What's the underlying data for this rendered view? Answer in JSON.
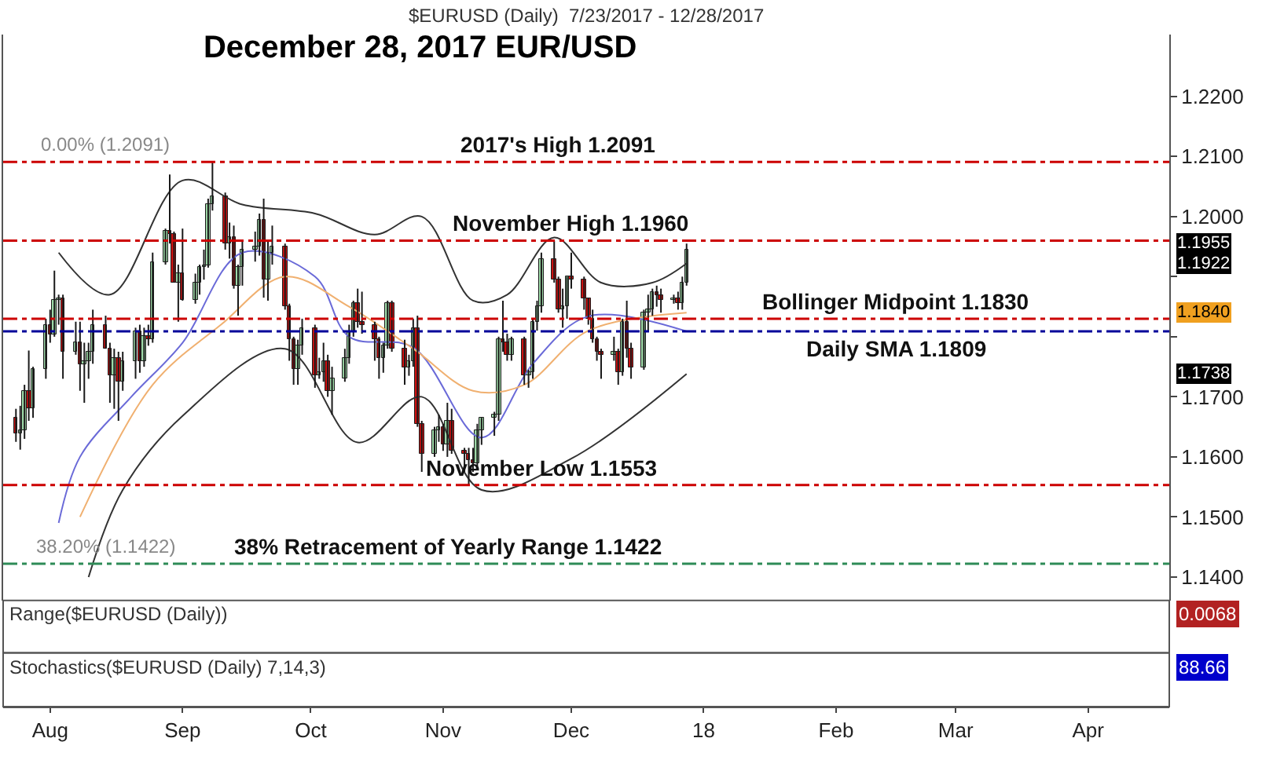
{
  "chart_data": {
    "type": "candlestick",
    "title": "December 28, 2017 EUR/USD",
    "subtitle": "$EURUSD (Daily)  7/23/2017 - 12/28/2017",
    "x": [
      "2017-07-24",
      "2017-07-25",
      "2017-07-26",
      "2017-07-27",
      "2017-07-28",
      "2017-07-31",
      "2017-08-01",
      "2017-08-02",
      "2017-08-03",
      "2017-08-04",
      "2017-08-07",
      "2017-08-08",
      "2017-08-09",
      "2017-08-10",
      "2017-08-11",
      "2017-08-14",
      "2017-08-15",
      "2017-08-16",
      "2017-08-17",
      "2017-08-18",
      "2017-08-21",
      "2017-08-22",
      "2017-08-23",
      "2017-08-24",
      "2017-08-25",
      "2017-08-28",
      "2017-08-29",
      "2017-08-30",
      "2017-08-31",
      "2017-09-01",
      "2017-09-04",
      "2017-09-05",
      "2017-09-06",
      "2017-09-07",
      "2017-09-08",
      "2017-09-11",
      "2017-09-12",
      "2017-09-13",
      "2017-09-14",
      "2017-09-15",
      "2017-09-18",
      "2017-09-19",
      "2017-09-20",
      "2017-09-21",
      "2017-09-22",
      "2017-09-25",
      "2017-09-26",
      "2017-09-27",
      "2017-09-28",
      "2017-09-29",
      "2017-10-02",
      "2017-10-03",
      "2017-10-04",
      "2017-10-05",
      "2017-10-06",
      "2017-10-09",
      "2017-10-10",
      "2017-10-11",
      "2017-10-12",
      "2017-10-13",
      "2017-10-16",
      "2017-10-17",
      "2017-10-18",
      "2017-10-19",
      "2017-10-20",
      "2017-10-23",
      "2017-10-24",
      "2017-10-25",
      "2017-10-26",
      "2017-10-27",
      "2017-10-30",
      "2017-10-31",
      "2017-11-01",
      "2017-11-02",
      "2017-11-03",
      "2017-11-06",
      "2017-11-07",
      "2017-11-08",
      "2017-11-09",
      "2017-11-10",
      "2017-11-13",
      "2017-11-14",
      "2017-11-15",
      "2017-11-16",
      "2017-11-17",
      "2017-11-20",
      "2017-11-21",
      "2017-11-22",
      "2017-11-23",
      "2017-11-24",
      "2017-11-27",
      "2017-11-28",
      "2017-11-29",
      "2017-11-30",
      "2017-12-01",
      "2017-12-04",
      "2017-12-05",
      "2017-12-06",
      "2017-12-07",
      "2017-12-08",
      "2017-12-11",
      "2017-12-12",
      "2017-12-13",
      "2017-12-14",
      "2017-12-15",
      "2017-12-18",
      "2017-12-19",
      "2017-12-20",
      "2017-12-21",
      "2017-12-22",
      "2017-12-25",
      "2017-12-26",
      "2017-12-27",
      "2017-12-28"
    ],
    "ohlc": [
      [
        1.1665,
        1.168,
        1.1625,
        1.164
      ],
      [
        1.164,
        1.1685,
        1.1612,
        1.1645
      ],
      [
        1.1645,
        1.172,
        1.163,
        1.171
      ],
      [
        1.171,
        1.1777,
        1.166,
        1.168
      ],
      [
        1.168,
        1.175,
        1.1665,
        1.1745
      ],
      [
        1.1745,
        1.183,
        1.173,
        1.182
      ],
      [
        1.182,
        1.1845,
        1.179,
        1.1805
      ],
      [
        1.1805,
        1.191,
        1.18,
        1.186
      ],
      [
        1.186,
        1.187,
        1.182,
        1.1865
      ],
      [
        1.1865,
        1.187,
        1.173,
        1.1775
      ],
      [
        1.1775,
        1.1825,
        1.177,
        1.179
      ],
      [
        1.179,
        1.1825,
        1.171,
        1.1755
      ],
      [
        1.1755,
        1.179,
        1.169,
        1.176
      ],
      [
        1.176,
        1.179,
        1.173,
        1.1775
      ],
      [
        1.1775,
        1.1845,
        1.1755,
        1.182
      ],
      [
        1.182,
        1.1835,
        1.178,
        1.178
      ],
      [
        1.178,
        1.179,
        1.169,
        1.1735
      ],
      [
        1.1735,
        1.178,
        1.168,
        1.1765
      ],
      [
        1.1765,
        1.1775,
        1.166,
        1.1725
      ],
      [
        1.1725,
        1.1775,
        1.171,
        1.176
      ],
      [
        1.176,
        1.1815,
        1.173,
        1.181
      ],
      [
        1.181,
        1.182,
        1.174,
        1.176
      ],
      [
        1.176,
        1.1815,
        1.175,
        1.18
      ],
      [
        1.18,
        1.182,
        1.1785,
        1.1795
      ],
      [
        1.1795,
        1.194,
        1.179,
        1.1925
      ],
      [
        1.1925,
        1.198,
        1.192,
        1.1975
      ],
      [
        1.1975,
        1.207,
        1.1955,
        1.197
      ],
      [
        1.197,
        1.1975,
        1.189,
        1.189
      ],
      [
        1.189,
        1.192,
        1.1825,
        1.1905
      ],
      [
        1.1905,
        1.198,
        1.186,
        1.186
      ],
      [
        1.186,
        1.1905,
        1.1855,
        1.189
      ],
      [
        1.189,
        1.192,
        1.187,
        1.1915
      ],
      [
        1.1915,
        1.1945,
        1.1895,
        1.192
      ],
      [
        1.192,
        1.203,
        1.1915,
        1.202
      ],
      [
        1.202,
        1.2091,
        1.201,
        1.2035
      ],
      [
        1.2035,
        1.204,
        1.1945,
        1.1955
      ],
      [
        1.1955,
        1.199,
        1.193,
        1.1965
      ],
      [
        1.1965,
        1.1985,
        1.188,
        1.1885
      ],
      [
        1.1885,
        1.192,
        1.1835,
        1.1915
      ],
      [
        1.1915,
        1.196,
        1.1885,
        1.1945
      ],
      [
        1.1945,
        1.1975,
        1.1925,
        1.195
      ],
      [
        1.195,
        1.2005,
        1.1935,
        1.1995
      ],
      [
        1.1995,
        1.203,
        1.1865,
        1.1895
      ],
      [
        1.1895,
        1.196,
        1.186,
        1.194
      ],
      [
        1.194,
        1.1985,
        1.192,
        1.195
      ],
      [
        1.195,
        1.1955,
        1.1845,
        1.185
      ],
      [
        1.185,
        1.1855,
        1.176,
        1.1795
      ],
      [
        1.1795,
        1.18,
        1.172,
        1.1745
      ],
      [
        1.1745,
        1.1795,
        1.172,
        1.1785
      ],
      [
        1.1785,
        1.183,
        1.177,
        1.1815
      ],
      [
        1.1815,
        1.182,
        1.1715,
        1.1735
      ],
      [
        1.1735,
        1.1765,
        1.173,
        1.174
      ],
      [
        1.174,
        1.179,
        1.1725,
        1.176
      ],
      [
        1.176,
        1.177,
        1.17,
        1.171
      ],
      [
        1.171,
        1.175,
        1.167,
        1.173
      ],
      [
        1.173,
        1.178,
        1.1725,
        1.1765
      ],
      [
        1.1765,
        1.182,
        1.1755,
        1.181
      ],
      [
        1.181,
        1.186,
        1.18,
        1.1855
      ],
      [
        1.1855,
        1.188,
        1.1815,
        1.1825
      ],
      [
        1.1825,
        1.1875,
        1.1805,
        1.182
      ],
      [
        1.182,
        1.1825,
        1.176,
        1.1795
      ],
      [
        1.1795,
        1.18,
        1.173,
        1.1765
      ],
      [
        1.1765,
        1.179,
        1.174,
        1.1785
      ],
      [
        1.1785,
        1.186,
        1.178,
        1.1855
      ],
      [
        1.1855,
        1.186,
        1.1775,
        1.178
      ],
      [
        1.178,
        1.1795,
        1.172,
        1.175
      ],
      [
        1.175,
        1.177,
        1.1735,
        1.176
      ],
      [
        1.176,
        1.183,
        1.175,
        1.1815
      ],
      [
        1.1815,
        1.1835,
        1.165,
        1.1655
      ],
      [
        1.1655,
        1.166,
        1.1575,
        1.1605
      ],
      [
        1.1605,
        1.165,
        1.16,
        1.1645
      ],
      [
        1.1645,
        1.167,
        1.1625,
        1.165
      ],
      [
        1.165,
        1.1655,
        1.161,
        1.162
      ],
      [
        1.162,
        1.169,
        1.16,
        1.166
      ],
      [
        1.166,
        1.168,
        1.1605,
        1.161
      ],
      [
        1.161,
        1.1615,
        1.1575,
        1.1605
      ],
      [
        1.1605,
        1.1615,
        1.1553,
        1.1595
      ],
      [
        1.1595,
        1.1615,
        1.1575,
        1.159
      ],
      [
        1.159,
        1.1655,
        1.158,
        1.1645
      ],
      [
        1.1645,
        1.1665,
        1.162,
        1.1665
      ],
      [
        1.1665,
        1.1675,
        1.1635,
        1.167
      ],
      [
        1.167,
        1.18,
        1.166,
        1.1795
      ],
      [
        1.1795,
        1.186,
        1.1775,
        1.179
      ],
      [
        1.179,
        1.1805,
        1.176,
        1.177
      ],
      [
        1.177,
        1.18,
        1.176,
        1.1795
      ],
      [
        1.1795,
        1.18,
        1.172,
        1.1735
      ],
      [
        1.1735,
        1.1745,
        1.1715,
        1.174
      ],
      [
        1.174,
        1.183,
        1.173,
        1.1825
      ],
      [
        1.1825,
        1.186,
        1.181,
        1.185
      ],
      [
        1.185,
        1.194,
        1.184,
        1.193
      ],
      [
        1.193,
        1.196,
        1.189,
        1.1895
      ],
      [
        1.1895,
        1.19,
        1.184,
        1.1845
      ],
      [
        1.1845,
        1.188,
        1.1815,
        1.185
      ],
      [
        1.185,
        1.19,
        1.183,
        1.19
      ],
      [
        1.19,
        1.194,
        1.188,
        1.1895
      ],
      [
        1.1895,
        1.19,
        1.1845,
        1.1865
      ],
      [
        1.1865,
        1.1865,
        1.182,
        1.183
      ],
      [
        1.183,
        1.1845,
        1.179,
        1.1795
      ],
      [
        1.1795,
        1.18,
        1.176,
        1.1775
      ],
      [
        1.1775,
        1.178,
        1.173,
        1.177
      ],
      [
        1.177,
        1.18,
        1.176,
        1.1775
      ],
      [
        1.1775,
        1.178,
        1.172,
        1.174
      ],
      [
        1.174,
        1.183,
        1.1735,
        1.1825
      ],
      [
        1.1825,
        1.186,
        1.1765,
        1.178
      ],
      [
        1.178,
        1.179,
        1.173,
        1.175
      ],
      [
        1.175,
        1.1845,
        1.1745,
        1.184
      ],
      [
        1.184,
        1.187,
        1.181,
        1.1845
      ],
      [
        1.1845,
        1.188,
        1.1835,
        1.1875
      ],
      [
        1.1875,
        1.1885,
        1.185,
        1.187
      ],
      [
        1.187,
        1.188,
        1.184,
        1.186
      ],
      [
        1.186,
        1.187,
        1.1855,
        1.1865
      ],
      [
        1.1865,
        1.1875,
        1.1845,
        1.1855
      ],
      [
        1.1855,
        1.19,
        1.1845,
        1.189
      ],
      [
        1.189,
        1.1955,
        1.1885,
        1.1945
      ]
    ],
    "series": [
      {
        "type": "line",
        "color": "#333333",
        "x": [
          "2017-08-03",
          "2017-08-15",
          "2017-09-01",
          "2017-09-15",
          "2017-10-02",
          "2017-10-16",
          "2017-10-27",
          "2017-11-08",
          "2017-11-16",
          "2017-11-27",
          "2017-12-08",
          "2017-12-20",
          "2017-12-28"
        ],
        "values": [
          1.194,
          1.187,
          1.206,
          1.202,
          1.2005,
          1.197,
          1.2,
          1.186,
          1.187,
          1.1965,
          1.189,
          1.189,
          1.1922
        ]
      },
      {
        "type": "line",
        "color": "#333333",
        "x": [
          "2017-08-10",
          "2017-08-18",
          "2017-09-01",
          "2017-09-25",
          "2017-10-12",
          "2017-10-27",
          "2017-11-10",
          "2017-12-01",
          "2017-12-28"
        ],
        "values": [
          1.14,
          1.1545,
          1.1668,
          1.178,
          1.1624,
          1.17,
          1.1545,
          1.1597,
          1.1738
        ]
      },
      {
        "type": "line",
        "color": "#6a6ad8",
        "x": [
          "2017-08-03",
          "2017-08-08",
          "2017-08-20",
          "2017-09-01",
          "2017-09-15",
          "2017-10-02",
          "2017-10-10",
          "2017-10-25",
          "2017-11-10",
          "2017-11-22",
          "2017-12-05",
          "2017-12-28"
        ],
        "values": [
          1.149,
          1.16,
          1.17,
          1.179,
          1.194,
          1.19,
          1.18,
          1.1782,
          1.1632,
          1.1755,
          1.1834,
          1.1809
        ]
      },
      {
        "type": "line",
        "color": "#f0b070",
        "x": [
          "2017-08-08",
          "2017-08-25",
          "2017-09-10",
          "2017-09-25",
          "2017-10-10",
          "2017-10-25",
          "2017-11-08",
          "2017-11-20",
          "2017-12-05",
          "2017-12-28"
        ],
        "values": [
          1.15,
          1.172,
          1.182,
          1.19,
          1.185,
          1.178,
          1.171,
          1.172,
          1.181,
          1.184
        ]
      }
    ],
    "ref_lines": [
      {
        "axis": "y",
        "value": 1.2091,
        "color": "#cc0000",
        "line_style": "dashdot"
      },
      {
        "axis": "y",
        "value": 1.196,
        "color": "#cc0000",
        "line_style": "dashdot"
      },
      {
        "axis": "y",
        "value": 1.183,
        "color": "#cc0000",
        "line_style": "dashdot"
      },
      {
        "axis": "y",
        "value": 1.1809,
        "color": "#000099",
        "line_style": "dashdot"
      },
      {
        "axis": "y",
        "value": 1.1553,
        "color": "#cc0000",
        "line_style": "dashdot"
      },
      {
        "axis": "y",
        "value": 1.1422,
        "color": "#2e8b57",
        "line_style": "dashdot"
      }
    ],
    "annotations": [
      {
        "text": "2017's High 1.2091",
        "x": "2017-11-28",
        "y": 1.2091
      },
      {
        "text": "November High 1.1960",
        "x": "2017-12-01",
        "y": 1.196
      },
      {
        "text": "Bollinger Midpoint 1.1830",
        "x": "2018-02-15",
        "y": 1.183
      },
      {
        "text": "Daily SMA 1.1809",
        "x": "2018-02-15",
        "y": 1.1809
      },
      {
        "text": "November Low 1.1553",
        "x": "2017-11-24",
        "y": 1.1553
      },
      {
        "text": "38% Retracement of Yearly Range 1.1422",
        "x": "2017-11-02",
        "y": 1.1422
      },
      {
        "text": "0.00% (1.2091)",
        "x": "2017-08-14",
        "y": 1.2091
      },
      {
        "text": "38.20% (1.1422)",
        "x": "2017-08-14",
        "y": 1.1422
      },
      "1.1955",
      "1.1922",
      "1.1840",
      "1.1738",
      "Range($EURUSD (Daily))",
      "0.0068",
      "Stochastics($EURUSD (Daily) 7,14,3)",
      "88.66"
    ],
    "xlim": [
      "2017-07-21",
      "2018-04-20"
    ],
    "ylim": [
      1.1361,
      1.2303
    ],
    "xticks": [
      {
        "value": "2017-08-01",
        "label": "Aug"
      },
      {
        "value": "2017-09-01",
        "label": "Sep"
      },
      {
        "value": "2017-10-01",
        "label": "Oct"
      },
      {
        "value": "2017-11-01",
        "label": "Nov"
      },
      {
        "value": "2017-12-01",
        "label": "Dec"
      },
      {
        "value": "2018-01-01",
        "label": "18"
      },
      {
        "value": "2018-02-01",
        "label": "Feb"
      },
      {
        "value": "2018-03-01",
        "label": "Mar"
      },
      {
        "value": "2018-04-01",
        "label": "Apr"
      }
    ],
    "yticks": [
      {
        "value": 1.14,
        "label": "1.1400"
      },
      {
        "value": 1.15,
        "label": "1.1500"
      },
      {
        "value": 1.16,
        "label": "1.1600"
      },
      {
        "value": 1.17,
        "label": "1.1700"
      },
      {
        "value": 1.18,
        "label": null
      },
      {
        "value": 1.19,
        "label": null
      },
      {
        "value": 1.2,
        "label": "1.2000"
      },
      {
        "value": 1.21,
        "label": "1.2100"
      },
      {
        "value": 1.22,
        "label": "1.2200"
      }
    ],
    "line_style": "solid"
  }
}
